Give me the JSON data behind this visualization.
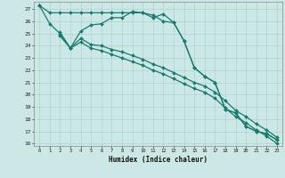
{
  "xlabel": "Humidex (Indice chaleur)",
  "xlim": [
    -0.5,
    23.5
  ],
  "ylim": [
    15.8,
    27.6
  ],
  "yticks": [
    16,
    17,
    18,
    19,
    20,
    21,
    22,
    23,
    24,
    25,
    26,
    27
  ],
  "xticks": [
    0,
    1,
    2,
    3,
    4,
    5,
    6,
    7,
    8,
    9,
    10,
    11,
    12,
    13,
    14,
    15,
    16,
    17,
    18,
    19,
    20,
    21,
    22,
    23
  ],
  "background_color": "#cce8e6",
  "grid_color": "#b0d0ce",
  "line_color": "#1a7a6e",
  "line1_x": [
    0,
    1,
    2,
    3,
    4,
    5,
    6,
    7,
    8,
    9,
    10,
    11,
    12,
    13,
    14,
    15,
    16,
    17,
    18,
    19,
    20,
    21,
    22,
    23
  ],
  "line1_y": [
    27.3,
    26.7,
    26.7,
    26.7,
    26.7,
    26.7,
    26.7,
    26.7,
    26.7,
    26.7,
    26.7,
    26.5,
    26.0,
    25.9,
    24.4,
    22.2,
    21.5,
    21.0,
    18.8,
    18.5,
    17.4,
    17.0,
    16.8,
    16.3
  ],
  "line2_x": [
    0,
    1,
    2,
    3,
    4,
    5,
    6,
    7,
    8,
    9,
    10,
    11,
    12,
    13,
    14,
    15,
    16,
    17,
    18,
    19,
    20,
    21,
    22,
    23
  ],
  "line2_y": [
    27.3,
    25.8,
    25.0,
    23.8,
    25.2,
    25.7,
    25.8,
    26.3,
    26.3,
    26.8,
    26.7,
    26.3,
    26.6,
    25.9,
    24.4,
    22.2,
    21.5,
    21.0,
    18.8,
    18.5,
    17.4,
    17.0,
    16.8,
    16.3
  ],
  "line3_x": [
    2,
    3,
    4,
    5,
    6,
    7,
    8,
    9,
    10,
    11,
    12,
    13,
    14,
    15,
    16,
    17,
    18,
    19,
    20,
    21,
    22,
    23
  ],
  "line3_y": [
    25.1,
    23.8,
    24.6,
    24.1,
    24.0,
    23.7,
    23.5,
    23.2,
    22.9,
    22.5,
    22.2,
    21.8,
    21.4,
    21.0,
    20.7,
    20.2,
    19.5,
    18.7,
    18.2,
    17.6,
    17.1,
    16.5
  ],
  "line4_x": [
    2,
    3,
    4,
    5,
    6,
    7,
    8,
    9,
    10,
    11,
    12,
    13,
    14,
    15,
    16,
    17,
    18,
    19,
    20,
    21,
    22,
    23
  ],
  "line4_y": [
    24.8,
    23.8,
    24.3,
    23.8,
    23.6,
    23.3,
    23.0,
    22.7,
    22.4,
    22.0,
    21.7,
    21.3,
    20.9,
    20.5,
    20.2,
    19.7,
    18.9,
    18.2,
    17.7,
    17.1,
    16.6,
    16.0
  ]
}
